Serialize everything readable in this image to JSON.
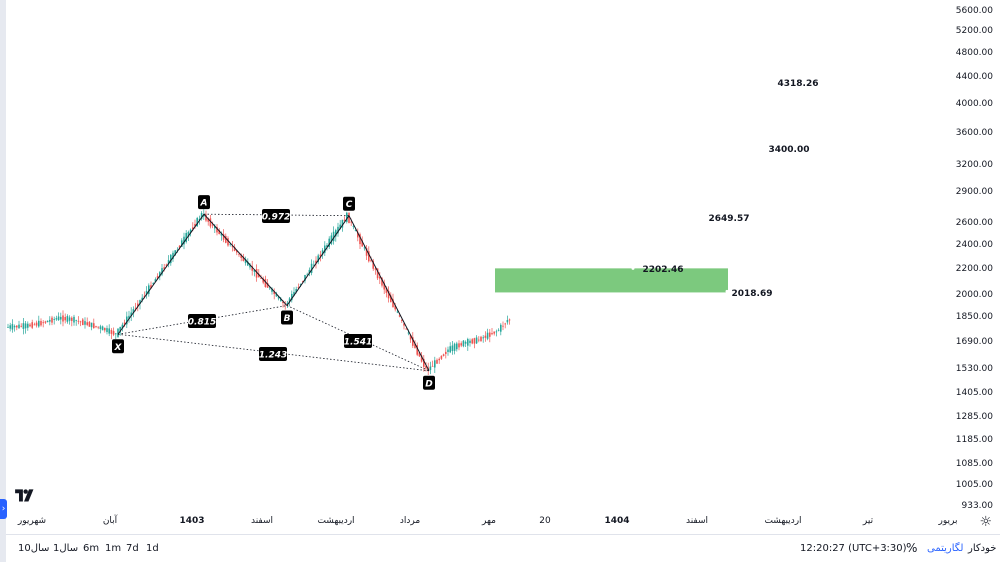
{
  "chart_data": {
    "type": "candlestick",
    "harmonic_pattern": {
      "points": [
        {
          "label": "X",
          "price": 1735
        },
        {
          "label": "A",
          "price": 2680
        },
        {
          "label": "B",
          "price": 1925
        },
        {
          "label": "C",
          "price": 2665
        },
        {
          "label": "D",
          "price": 1520
        }
      ],
      "ratios": [
        {
          "label": "0.972",
          "between": "A-C"
        },
        {
          "label": "0.815",
          "between": "X-B"
        },
        {
          "label": "1.541",
          "between": "B-D"
        },
        {
          "label": "1.243",
          "between": "X-D"
        }
      ]
    },
    "target_levels": [
      {
        "label": "4318.26",
        "price": 4318.26
      },
      {
        "label": "3400.00",
        "price": 3400.0
      },
      {
        "label": "2649.57",
        "price": 2649.57
      },
      {
        "label": "2202.46",
        "price": 2202.46
      },
      {
        "label": "2018.69",
        "price": 2018.69
      }
    ],
    "target_zone": {
      "from": 2018.69,
      "to": 2202.46,
      "color": "#7cc97e"
    },
    "y_axis_ticks": [
      "5600.00",
      "5200.00",
      "4800.00",
      "4400.00",
      "4000.00",
      "3600.00",
      "3200.00",
      "2900.00",
      "2600.00",
      "2400.00",
      "2200.00",
      "2000.00",
      "1850.00",
      "1690.00",
      "1530.00",
      "1405.00",
      "1285.00",
      "1185.00",
      "1085.00",
      "1005.00",
      "933.00"
    ],
    "y_scale": "log",
    "ylim": [
      925,
      5600
    ],
    "x_axis_ticks": [
      {
        "text": "شهریور",
        "bold": false
      },
      {
        "text": "آبان",
        "bold": false
      },
      {
        "text": "1403",
        "bold": true
      },
      {
        "text": "اسفند",
        "bold": false
      },
      {
        "text": "اردیبهشت",
        "bold": false
      },
      {
        "text": "مرداد",
        "bold": false
      },
      {
        "text": "مهر",
        "bold": false
      },
      {
        "text": "20",
        "bold": false
      },
      {
        "text": "1404",
        "bold": true
      },
      {
        "text": "اسفند",
        "bold": false
      },
      {
        "text": "اردیبهشت",
        "bold": false
      },
      {
        "text": "تیر",
        "bold": false
      },
      {
        "text": "بریور",
        "bold": false
      }
    ],
    "colors": {
      "up": "#26a69a",
      "down": "#ef5350",
      "pattern_line": "#131722",
      "label_bg": "#000000"
    }
  },
  "bottom_bar": {
    "ranges": [
      "1d",
      "7d",
      "1m",
      "6m",
      "1سال",
      "10سال"
    ],
    "time": "12:20:27 (UTC+3:30)",
    "percent": "%",
    "log": "لگاریتمی",
    "auto": "خودکار"
  },
  "icons": {
    "logo": "tradingview-logo",
    "settings": "gear-icon",
    "side": "chevron-right-icon"
  }
}
